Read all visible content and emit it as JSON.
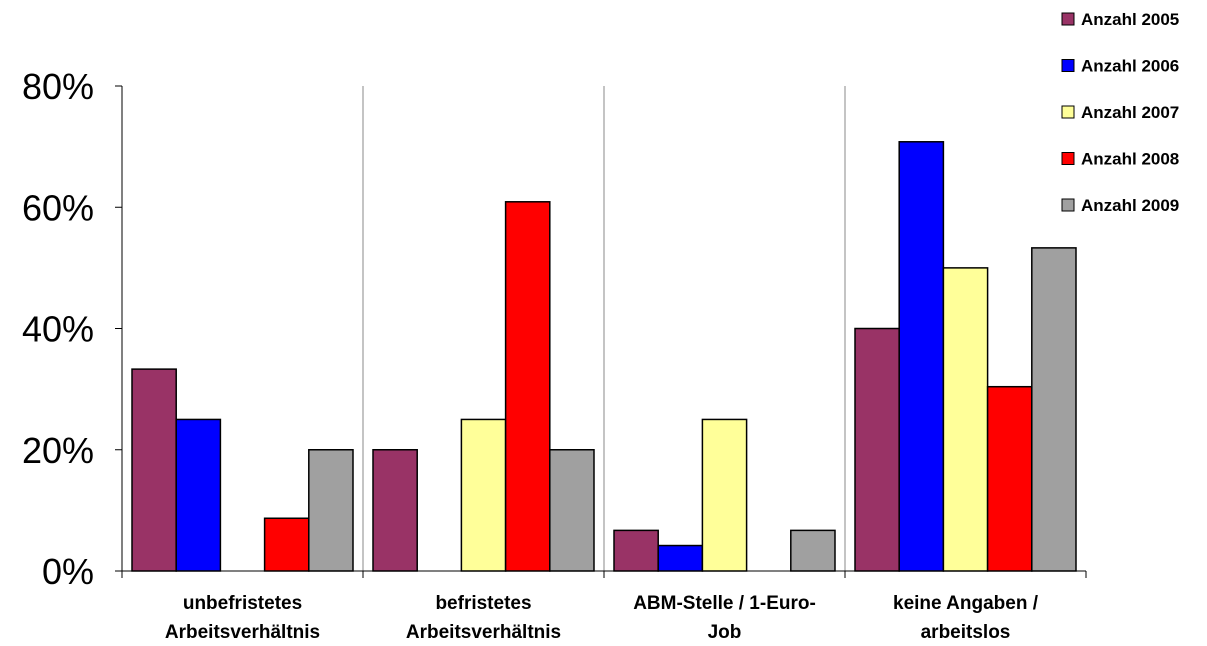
{
  "chart_data": {
    "type": "bar",
    "categories": [
      [
        "unbefristetes",
        "Arbeitsverhältnis"
      ],
      [
        "befristetes",
        "Arbeitsverhältnis"
      ],
      [
        "ABM-Stelle / 1-Euro-",
        "Job"
      ],
      [
        "keine Angaben /",
        "arbeitslos"
      ]
    ],
    "series": [
      {
        "name": "Anzahl 2005",
        "color": "#993366",
        "values": [
          33.3,
          20,
          6.7,
          40
        ]
      },
      {
        "name": "Anzahl 2006",
        "color": "#0000FF",
        "values": [
          25,
          0,
          4.2,
          70.8
        ]
      },
      {
        "name": "Anzahl 2007",
        "color": "#FFFF99",
        "values": [
          0,
          25,
          25,
          50
        ]
      },
      {
        "name": "Anzahl 2008",
        "color": "#FF0000",
        "values": [
          8.7,
          60.9,
          0,
          30.4
        ]
      },
      {
        "name": "Anzahl 2009",
        "color": "#A0A0A0",
        "values": [
          20,
          20,
          6.7,
          53.3
        ]
      }
    ],
    "y_ticks": [
      "0%",
      "20%",
      "40%",
      "60%",
      "80%"
    ],
    "y_tick_values": [
      0,
      20,
      40,
      60,
      80
    ],
    "ylim": [
      0,
      80
    ],
    "grid": false,
    "category_separators": true,
    "legend_position": "top-right"
  }
}
